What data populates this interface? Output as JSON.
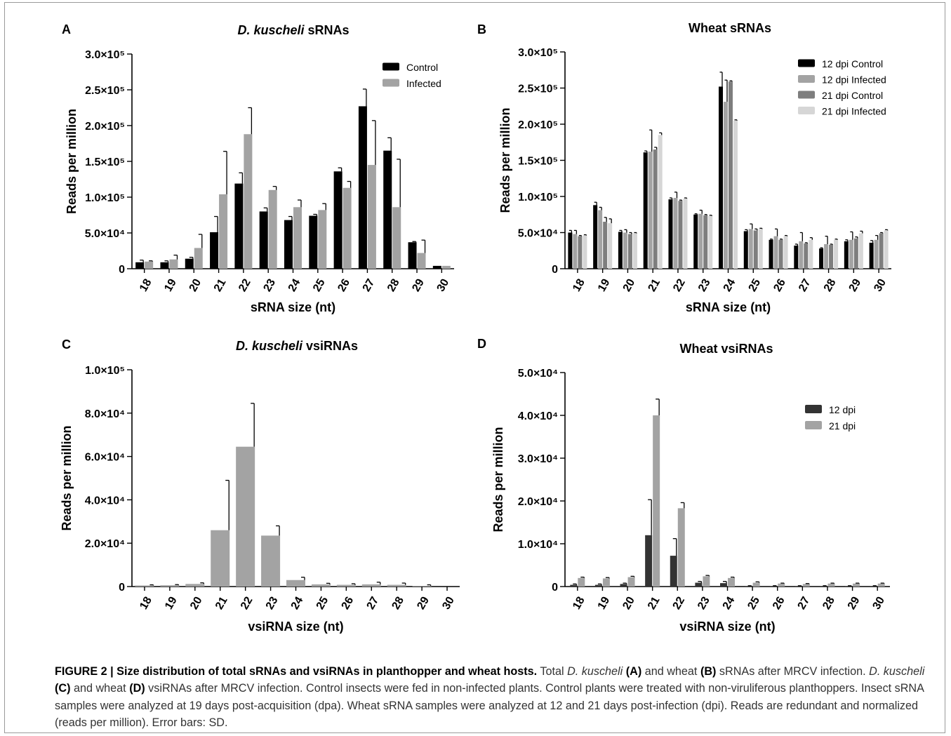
{
  "colors": {
    "black": "#000000",
    "gray": "#a3a3a3",
    "darkgray": "#7e7e7e",
    "lightgray": "#d6d6d6",
    "charcoal": "#333333"
  },
  "caption": {
    "figure_label": "FIGURE 2 | Size distribution of total sRNAs and vsiRNAs in planthopper and wheat hosts.",
    "t1": " Total ",
    "i1": "D. kuscheli",
    "t2": " ",
    "b1": "(A)",
    "t3": " and wheat ",
    "b2": "(B)",
    "t4": " sRNAs after MRCV infection. ",
    "i2": "D. kuscheli",
    "t5": " ",
    "b3": "(C)",
    "t6": " and wheat ",
    "b4": "(D)",
    "t7": " vsiRNAs after MRCV infection. Control insects were fed in non-infected plants. Control plants were treated with non-viruliferous planthoppers. Insect sRNA samples were analyzed at 19 days post-acquisition (dpa). Wheat sRNA samples were analyzed at 12 and 21 days post-infection (dpi). Reads are redundant and normalized (reads per million). Error bars: SD."
  },
  "chart_data": [
    {
      "panel": "A",
      "type": "bar",
      "title_italic": "D. kuscheli",
      "title_rest": " sRNAs",
      "xlabel": "sRNA size (nt)",
      "ylabel": "Reads per million",
      "ylim": [
        0,
        300000
      ],
      "yticks": [
        {
          "value": 0,
          "label": "0"
        },
        {
          "value": 50000,
          "label": "5.0×10⁴"
        },
        {
          "value": 100000,
          "label": "1.0×10⁵"
        },
        {
          "value": 150000,
          "label": "1.5×10⁵"
        },
        {
          "value": 200000,
          "label": "2.0×10⁵"
        },
        {
          "value": 250000,
          "label": "2.5×10⁵"
        },
        {
          "value": 300000,
          "label": "3.0×10⁵"
        }
      ],
      "legend_position": "top-right",
      "categories": [
        "18",
        "19",
        "20",
        "21",
        "22",
        "23",
        "24",
        "25",
        "26",
        "27",
        "28",
        "29",
        "30"
      ],
      "series": [
        {
          "name": "Control",
          "color": "#000000",
          "values": [
            9000,
            9000,
            14000,
            51000,
            119000,
            80000,
            68000,
            74000,
            136000,
            227000,
            165000,
            37000,
            4000
          ],
          "errors": [
            3000,
            2000,
            2000,
            22000,
            15000,
            5000,
            5000,
            2000,
            5000,
            24000,
            18000,
            1000,
            0
          ]
        },
        {
          "name": "Infected",
          "color": "#a3a3a3",
          "values": [
            10000,
            13000,
            29000,
            104000,
            188000,
            110000,
            86000,
            82000,
            113000,
            145000,
            86000,
            22000,
            4000
          ],
          "errors": [
            1000,
            6000,
            19000,
            60000,
            37000,
            5000,
            10000,
            9000,
            9000,
            62000,
            67000,
            18000,
            0
          ]
        }
      ]
    },
    {
      "panel": "B",
      "type": "bar",
      "title_italic": "",
      "title_rest": "Wheat sRNAs",
      "xlabel": "sRNA size (nt)",
      "ylabel": "Reads per million",
      "ylim": [
        0,
        300000
      ],
      "yticks": [
        {
          "value": 0,
          "label": "0"
        },
        {
          "value": 50000,
          "label": "5.0×10⁴"
        },
        {
          "value": 100000,
          "label": "1.0×10⁵"
        },
        {
          "value": 150000,
          "label": "1.5×10⁵"
        },
        {
          "value": 200000,
          "label": "2.0×10⁵"
        },
        {
          "value": 250000,
          "label": "2.5×10⁵"
        },
        {
          "value": 300000,
          "label": "3.0×10⁵"
        }
      ],
      "legend_position": "top-right",
      "categories": [
        "18",
        "19",
        "20",
        "21",
        "22",
        "23",
        "24",
        "25",
        "26",
        "27",
        "28",
        "29",
        "30"
      ],
      "series": [
        {
          "name": "12 dpi Control",
          "color": "#000000",
          "values": [
            50000,
            88000,
            51000,
            161000,
            96000,
            75000,
            252000,
            52000,
            40000,
            32000,
            28000,
            38000,
            36000
          ],
          "errors": [
            3000,
            4000,
            2000,
            2000,
            2000,
            1000,
            20000,
            2000,
            1000,
            2000,
            1000,
            2000,
            3000
          ]
        },
        {
          "name": "12 dpi Infected",
          "color": "#a3a3a3",
          "values": [
            48000,
            81000,
            50000,
            162000,
            98000,
            76000,
            231000,
            55000,
            45000,
            38000,
            34000,
            40000,
            40000
          ],
          "errors": [
            5000,
            4000,
            4000,
            30000,
            8000,
            5000,
            30000,
            7000,
            10000,
            12000,
            11000,
            11000,
            6000
          ]
        },
        {
          "name": "21 dpi Control",
          "color": "#7e7e7e",
          "values": [
            45000,
            65000,
            48000,
            165000,
            94000,
            74000,
            259000,
            53000,
            40000,
            35000,
            33000,
            42000,
            49000
          ],
          "errors": [
            1000,
            6000,
            2000,
            3000,
            1000,
            1000,
            1000,
            2000,
            1000,
            1000,
            1000,
            2000,
            1000
          ]
        },
        {
          "name": "21 dpi Infected",
          "color": "#d6d6d6",
          "values": [
            46000,
            63000,
            49000,
            185000,
            97000,
            73000,
            205000,
            55000,
            45000,
            40000,
            40000,
            49000,
            53000
          ],
          "errors": [
            1000,
            6000,
            1000,
            3000,
            1000,
            1000,
            1000,
            1000,
            1000,
            3000,
            1000,
            3000,
            1000
          ]
        }
      ]
    },
    {
      "panel": "C",
      "type": "bar",
      "title_italic": "D. kuscheli",
      "title_rest": " vsiRNAs",
      "xlabel": "vsiRNA size (nt)",
      "ylabel": "Reads per million",
      "ylim": [
        0,
        100000
      ],
      "yticks": [
        {
          "value": 0,
          "label": "0"
        },
        {
          "value": 20000,
          "label": "2.0×10⁴"
        },
        {
          "value": 40000,
          "label": "4.0×10⁴"
        },
        {
          "value": 60000,
          "label": "6.0×10⁴"
        },
        {
          "value": 80000,
          "label": "8.0×10⁴"
        },
        {
          "value": 100000,
          "label": "1.0×10⁵"
        }
      ],
      "legend_position": "none",
      "categories": [
        "18",
        "19",
        "20",
        "21",
        "22",
        "23",
        "24",
        "25",
        "26",
        "27",
        "28",
        "29",
        "30"
      ],
      "series": [
        {
          "name": "",
          "color": "#a3a3a3",
          "values": [
            500,
            600,
            1200,
            26000,
            64500,
            23500,
            3000,
            1000,
            800,
            1000,
            800,
            300,
            0
          ],
          "errors": [
            300,
            300,
            500,
            23000,
            20000,
            4500,
            1300,
            500,
            500,
            1000,
            800,
            500,
            0
          ]
        }
      ]
    },
    {
      "panel": "D",
      "type": "bar",
      "title_italic": "",
      "title_rest": "Wheat vsiRNAs",
      "xlabel": "vsiRNA size (nt)",
      "ylabel": "Reads per million",
      "ylim": [
        0,
        50000
      ],
      "yticks": [
        {
          "value": 0,
          "label": "0"
        },
        {
          "value": 10000,
          "label": "1.0×10⁴"
        },
        {
          "value": 20000,
          "label": "2.0×10⁴"
        },
        {
          "value": 30000,
          "label": "3.0×10⁴"
        },
        {
          "value": 40000,
          "label": "4.0×10⁴"
        },
        {
          "value": 50000,
          "label": "5.0×10⁴"
        }
      ],
      "legend_position": "top-right",
      "categories": [
        "18",
        "19",
        "20",
        "21",
        "22",
        "23",
        "24",
        "25",
        "26",
        "27",
        "28",
        "29",
        "30"
      ],
      "series": [
        {
          "name": "12 dpi",
          "color": "#333333",
          "values": [
            400,
            400,
            600,
            12000,
            7200,
            900,
            800,
            100,
            100,
            100,
            100,
            100,
            100
          ],
          "errors": [
            200,
            200,
            200,
            8300,
            4000,
            300,
            400,
            100,
            100,
            100,
            100,
            100,
            100
          ]
        },
        {
          "name": "21 dpi",
          "color": "#a3a3a3",
          "values": [
            2000,
            1900,
            2200,
            40000,
            18300,
            2400,
            2000,
            900,
            700,
            600,
            700,
            700,
            700
          ],
          "errors": [
            200,
            200,
            200,
            3800,
            1300,
            200,
            200,
            200,
            100,
            100,
            100,
            100,
            100
          ]
        }
      ]
    }
  ]
}
